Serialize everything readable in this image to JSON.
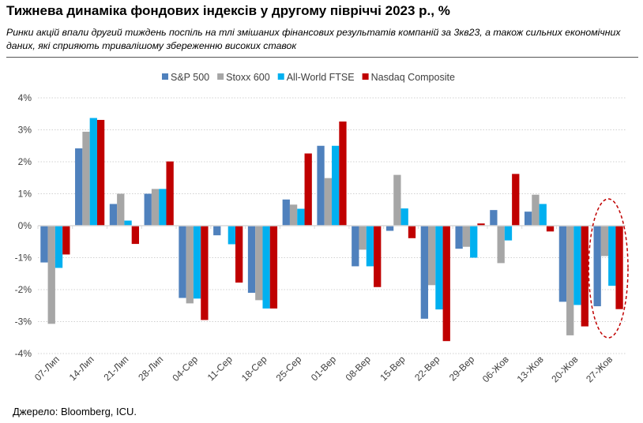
{
  "title": "Тижнева динаміка фондових індексів у другому півріччі 2023 р., %",
  "subtitle": "Ринки акцій впали другий тиждень поспіль на тлі змішаних фінансових результатів компаній за 3кв23, а також сильних економічних даних, які сприяють тривалішому збереженню високих ставок",
  "source": "Джерело: Bloomberg, ICU.",
  "chart_data": {
    "type": "bar",
    "title": "",
    "xlabel": "",
    "ylabel": "",
    "ylim": [
      -4,
      4
    ],
    "yticks": [
      4,
      3,
      2,
      1,
      0,
      -1,
      -2,
      -3,
      -4
    ],
    "ytick_labels": [
      "4%",
      "3%",
      "2%",
      "1%",
      "0%",
      "-1%",
      "-2%",
      "-3%",
      "-4%"
    ],
    "grid": true,
    "legend_position": "top",
    "categories": [
      "07-Лип",
      "14-Лип",
      "21-Лип",
      "28-Лип",
      "04-Сер",
      "11-Сер",
      "18-Сер",
      "25-Сер",
      "01-Вер",
      "08-Вер",
      "15-Вер",
      "22-Вер",
      "29-Вер",
      "06-Жов",
      "13-Жов",
      "20-Жов",
      "27-Жов"
    ],
    "series": [
      {
        "name": "S&P 500",
        "color": "#4F81BD",
        "values": [
          -1.15,
          2.42,
          0.68,
          1.0,
          -2.26,
          -0.3,
          -2.1,
          0.82,
          2.5,
          -1.27,
          -0.16,
          -2.91,
          -0.72,
          0.49,
          0.44,
          -2.38,
          -2.52
        ]
      },
      {
        "name": "Stoxx 600",
        "color": "#A6A6A6",
        "values": [
          -3.07,
          2.94,
          1.0,
          1.15,
          -2.43,
          0.0,
          -2.33,
          0.66,
          1.49,
          -0.75,
          1.59,
          -1.86,
          -0.66,
          -1.17,
          0.97,
          -3.43,
          -0.95
        ]
      },
      {
        "name": "All-World FTSE",
        "color": "#00B0F0",
        "values": [
          -1.32,
          3.37,
          0.16,
          1.15,
          -2.28,
          -0.58,
          -2.59,
          0.53,
          2.5,
          -1.27,
          0.54,
          -2.62,
          -1.0,
          -0.46,
          0.68,
          -2.48,
          -1.88
        ]
      },
      {
        "name": "Nasdaq Composite",
        "color": "#C00000",
        "values": [
          -0.9,
          3.31,
          -0.57,
          2.01,
          -2.95,
          -1.78,
          -2.59,
          2.26,
          3.26,
          -1.92,
          -0.39,
          -3.61,
          0.07,
          1.62,
          -0.18,
          -3.15,
          -2.61
        ]
      }
    ],
    "highlight": {
      "category": "27-Жов",
      "shape": "dashed-ellipse",
      "color": "#C00000"
    }
  }
}
